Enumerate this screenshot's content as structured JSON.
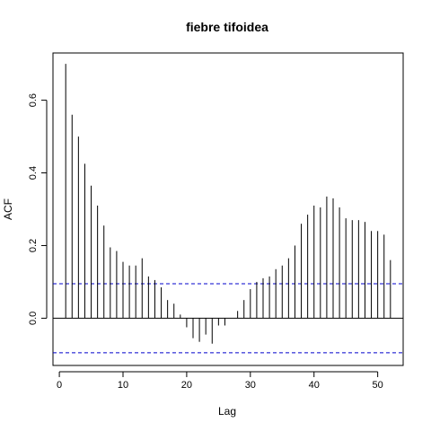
{
  "chart_data": {
    "type": "bar",
    "title": "fiebre tifoidea",
    "xlabel": "Lag",
    "ylabel": "ACF",
    "xlim": [
      -1,
      54
    ],
    "ylim": [
      -0.13,
      0.73
    ],
    "x_ticks": [
      0,
      10,
      20,
      30,
      40,
      50
    ],
    "y_ticks": [
      0.0,
      0.2,
      0.4,
      0.6
    ],
    "x_tick_labels": [
      "0",
      "10",
      "20",
      "30",
      "40",
      "50"
    ],
    "y_tick_labels": [
      "0.0",
      "0.2",
      "0.4",
      "0.6"
    ],
    "confidence_band": 0.095,
    "grid": false,
    "colors": {
      "bars": "#000000",
      "band": "#0000cc",
      "axis": "#000000"
    },
    "lags": [
      1,
      2,
      3,
      4,
      5,
      6,
      7,
      8,
      9,
      10,
      11,
      12,
      13,
      14,
      15,
      16,
      17,
      18,
      19,
      20,
      21,
      22,
      23,
      24,
      25,
      26,
      27,
      28,
      29,
      30,
      31,
      32,
      33,
      34,
      35,
      36,
      37,
      38,
      39,
      40,
      41,
      42,
      43,
      44,
      45,
      46,
      47,
      48,
      49,
      50,
      51,
      52
    ],
    "values": [
      0.7,
      0.56,
      0.5,
      0.425,
      0.365,
      0.31,
      0.255,
      0.195,
      0.185,
      0.155,
      0.145,
      0.145,
      0.165,
      0.115,
      0.105,
      0.085,
      0.05,
      0.04,
      0.01,
      -0.025,
      -0.055,
      -0.065,
      -0.045,
      -0.07,
      -0.02,
      -0.02,
      0.0,
      0.02,
      0.05,
      0.08,
      0.1,
      0.11,
      0.115,
      0.135,
      0.145,
      0.165,
      0.2,
      0.26,
      0.285,
      0.31,
      0.305,
      0.335,
      0.33,
      0.305,
      0.275,
      0.27,
      0.27,
      0.265,
      0.24,
      0.24,
      0.23,
      0.16
    ]
  }
}
